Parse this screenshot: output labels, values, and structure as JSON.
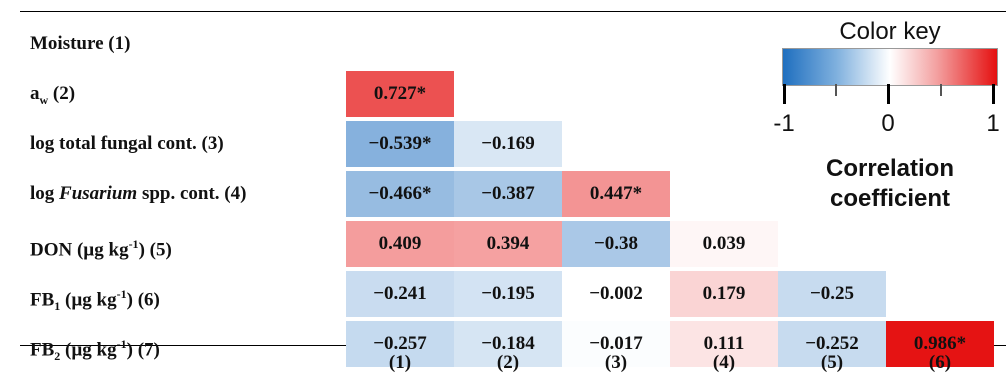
{
  "chart_data": {
    "type": "heatmap",
    "row_labels": [
      {
        "main": "Moisture (1)"
      },
      {
        "main": "a",
        "sub": "w",
        "after": " (2)"
      },
      {
        "main": "log total fungal cont. (3)"
      },
      {
        "main": "log ",
        "italic": "Fusarium",
        "after": " spp. cont. (4)"
      },
      {
        "main": "DON (µg kg",
        "sup": "-1",
        "after": ") (5)"
      },
      {
        "main": "FB",
        "sub": "1",
        "mid": " (µg kg",
        "sup": "-1",
        "after": ") (6)"
      },
      {
        "main": "FB",
        "sub": "2",
        "mid": " (µg kg",
        "sup": "-1",
        "after": ") (7)"
      }
    ],
    "col_labels": [
      "(1)",
      "(2)",
      "(3)",
      "(4)",
      "(5)",
      "(6)"
    ],
    "values": [
      [],
      [
        0.727
      ],
      [
        -0.539,
        -0.169
      ],
      [
        -0.466,
        -0.387,
        0.447
      ],
      [
        0.409,
        0.394,
        -0.38,
        0.039
      ],
      [
        -0.241,
        -0.195,
        -0.002,
        0.179,
        -0.25
      ],
      [
        -0.257,
        -0.184,
        -0.017,
        0.111,
        -0.252,
        0.986
      ]
    ],
    "display": [
      [],
      [
        "0.727*"
      ],
      [
        "−0.539*",
        "−0.169"
      ],
      [
        "−0.466*",
        "−0.387",
        "0.447*"
      ],
      [
        "0.409",
        "0.394",
        "−0.38",
        "0.039"
      ],
      [
        "−0.241",
        "−0.195",
        "−0.002",
        "0.179",
        "−0.25"
      ],
      [
        "−0.257",
        "−0.184",
        "−0.017",
        "0.111",
        "−0.252",
        "0.986*"
      ]
    ],
    "color_scale": {
      "min": -1,
      "max": 1,
      "negative": "#1f6fbf",
      "neutral": "#ffffff",
      "positive": "#e51010"
    },
    "legend": {
      "title": "Color key",
      "ticks": [
        "-1",
        "0",
        "1"
      ],
      "label_line1": "Correlation",
      "label_line2": "coefficient",
      "placement": "top-right"
    }
  }
}
